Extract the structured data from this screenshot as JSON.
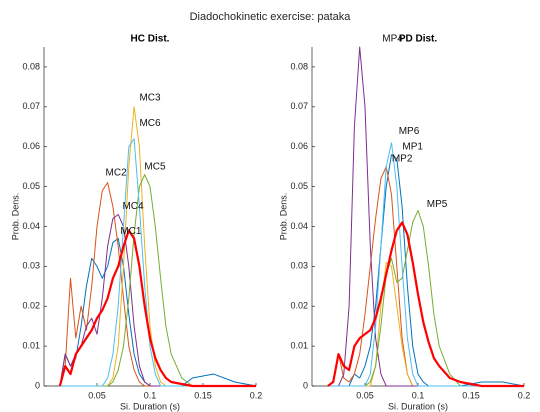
{
  "title": "Diadochokinetic exercise: pataka",
  "chart_data": [
    {
      "type": "line",
      "title": "HC Dist.",
      "xlabel": "Si. Duration (s)",
      "ylabel": "Prob. Dens.",
      "xlim": [
        0,
        0.2
      ],
      "ylim": [
        0,
        0.085
      ],
      "xticks": [
        0.05,
        0.1,
        0.15,
        0.2
      ],
      "yticks": [
        0,
        0.01,
        0.02,
        0.03,
        0.04,
        0.05,
        0.06,
        0.07,
        0.08
      ],
      "x": [
        0.015,
        0.02,
        0.025,
        0.03,
        0.035,
        0.04,
        0.045,
        0.05,
        0.055,
        0.06,
        0.065,
        0.07,
        0.075,
        0.08,
        0.085,
        0.09,
        0.095,
        0.1,
        0.105,
        0.11,
        0.115,
        0.12,
        0.13,
        0.14,
        0.16,
        0.18,
        0.2
      ],
      "series": [
        {
          "color": "#0072bd",
          "line_width": 1,
          "values": [
            0,
            0.008,
            0.005,
            0.007,
            0.015,
            0.025,
            0.032,
            0.03,
            0.027,
            0.03,
            0.036,
            0.037,
            0.03,
            0.018,
            0.008,
            0.003,
            0.001,
            0,
            0,
            0,
            0,
            0,
            0,
            0.002,
            0.003,
            0.001,
            0
          ]
        },
        {
          "color": "#d95319",
          "line_width": 1,
          "values": [
            0,
            0.005,
            0.027,
            0.012,
            0.02,
            0.014,
            0.025,
            0.04,
            0.049,
            0.051,
            0.045,
            0.035,
            0.022,
            0.01,
            0.004,
            0.001,
            0,
            0,
            0,
            0,
            0,
            0,
            0,
            0,
            0,
            0,
            0
          ]
        },
        {
          "color": "#edb120",
          "line_width": 1,
          "values": [
            0,
            0,
            0,
            0,
            0,
            0,
            0,
            0,
            0,
            0,
            0.002,
            0.01,
            0.03,
            0.055,
            0.07,
            0.06,
            0.035,
            0.015,
            0.005,
            0.001,
            0,
            0,
            0,
            0,
            0,
            0,
            0
          ]
        },
        {
          "color": "#7e2f8e",
          "line_width": 1,
          "values": [
            0,
            0.008,
            0.005,
            0.008,
            0.01,
            0.015,
            0.017,
            0.013,
            0.022,
            0.035,
            0.042,
            0.043,
            0.04,
            0.03,
            0.015,
            0.005,
            0.001,
            0,
            0,
            0,
            0,
            0,
            0,
            0,
            0,
            0,
            0
          ]
        },
        {
          "color": "#77ac30",
          "line_width": 1,
          "values": [
            0,
            0,
            0,
            0,
            0,
            0,
            0,
            0,
            0,
            0,
            0.001,
            0.004,
            0.01,
            0.022,
            0.038,
            0.05,
            0.053,
            0.05,
            0.04,
            0.027,
            0.015,
            0.008,
            0.002,
            0,
            0,
            0,
            0
          ]
        },
        {
          "color": "#4dbeee",
          "line_width": 1,
          "values": [
            0,
            0,
            0,
            0,
            0,
            0,
            0,
            0,
            0,
            0.002,
            0.008,
            0.02,
            0.04,
            0.06,
            0.062,
            0.045,
            0.025,
            0.01,
            0.003,
            0,
            0,
            0,
            0,
            0,
            0,
            0,
            0
          ]
        },
        {
          "color": "#ff0000",
          "line_width": 2.2,
          "values": [
            0,
            0.005,
            0.003,
            0.008,
            0.01,
            0.012,
            0.014,
            0.017,
            0.019,
            0.022,
            0.027,
            0.03,
            0.035,
            0.039,
            0.037,
            0.03,
            0.02,
            0.012,
            0.007,
            0.004,
            0.002,
            0.001,
            0.0005,
            0,
            0,
            0,
            0
          ]
        }
      ],
      "annotations": [
        {
          "text": "MC3",
          "x": 0.1,
          "y": 0.0723
        },
        {
          "text": "MC6",
          "x": 0.1,
          "y": 0.0658
        },
        {
          "text": "MC5",
          "x": 0.1047,
          "y": 0.055
        },
        {
          "text": "MC2",
          "x": 0.068,
          "y": 0.0535
        },
        {
          "text": "MC4",
          "x": 0.084,
          "y": 0.045
        },
        {
          "text": "MC1",
          "x": 0.082,
          "y": 0.0388
        }
      ]
    },
    {
      "type": "line",
      "title": "PD Dist.",
      "xlabel": "Si. Duration (s)",
      "ylabel": "Prob. Dens.",
      "xlim": [
        0,
        0.2
      ],
      "ylim": [
        0,
        0.085
      ],
      "xticks": [
        0.05,
        0.1,
        0.15,
        0.2
      ],
      "yticks": [
        0,
        0.01,
        0.02,
        0.03,
        0.04,
        0.05,
        0.06,
        0.07,
        0.08
      ],
      "x": [
        0.015,
        0.02,
        0.025,
        0.03,
        0.035,
        0.04,
        0.045,
        0.05,
        0.055,
        0.06,
        0.065,
        0.07,
        0.075,
        0.08,
        0.085,
        0.09,
        0.095,
        0.1,
        0.105,
        0.11,
        0.115,
        0.12,
        0.13,
        0.14,
        0.16,
        0.18,
        0.2
      ],
      "series": [
        {
          "color": "#0072bd",
          "line_width": 1,
          "values": [
            0,
            0,
            0,
            0,
            0,
            0.003,
            0.002,
            0.005,
            0.01,
            0.02,
            0.035,
            0.05,
            0.058,
            0.057,
            0.045,
            0.025,
            0.01,
            0.003,
            0.001,
            0,
            0,
            0,
            0,
            0,
            0.001,
            0.001,
            0
          ]
        },
        {
          "color": "#d95319",
          "line_width": 1,
          "values": [
            0,
            0.001,
            0.008,
            0.002,
            0.001,
            0.003,
            0.008,
            0.018,
            0.03,
            0.042,
            0.052,
            0.055,
            0.048,
            0.03,
            0.012,
            0.003,
            0,
            0,
            0,
            0,
            0,
            0,
            0,
            0,
            0,
            0,
            0
          ]
        },
        {
          "color": "#edb120",
          "line_width": 1,
          "values": [
            0,
            0,
            0,
            0,
            0,
            0,
            0,
            0,
            0,
            0.005,
            0.02,
            0.031,
            0.03,
            0.02,
            0.01,
            0.003,
            0,
            0,
            0,
            0,
            0,
            0,
            0,
            0,
            0,
            0,
            0
          ]
        },
        {
          "color": "#7e2f8e",
          "line_width": 1,
          "values": [
            0,
            0,
            0,
            0.003,
            0.02,
            0.065,
            0.085,
            0.07,
            0.035,
            0.012,
            0.003,
            0,
            0,
            0,
            0,
            0,
            0,
            0,
            0,
            0,
            0,
            0,
            0,
            0,
            0,
            0,
            0
          ]
        },
        {
          "color": "#77ac30",
          "line_width": 1,
          "values": [
            0,
            0,
            0,
            0,
            0,
            0,
            0,
            0,
            0.001,
            0.005,
            0.015,
            0.028,
            0.032,
            0.026,
            0.027,
            0.034,
            0.041,
            0.044,
            0.04,
            0.03,
            0.018,
            0.01,
            0.003,
            0,
            0,
            0,
            0
          ]
        },
        {
          "color": "#4dbeee",
          "line_width": 1,
          "values": [
            0,
            0,
            0,
            0,
            0,
            0,
            0,
            0,
            0.003,
            0.015,
            0.035,
            0.055,
            0.061,
            0.05,
            0.03,
            0.012,
            0.003,
            0,
            0,
            0,
            0,
            0,
            0,
            0,
            0,
            0,
            0
          ]
        },
        {
          "color": "#ff0000",
          "line_width": 2.2,
          "values": [
            0,
            0.001,
            0.008,
            0.005,
            0.004,
            0.01,
            0.012,
            0.013,
            0.014,
            0.017,
            0.022,
            0.028,
            0.034,
            0.039,
            0.041,
            0.038,
            0.031,
            0.023,
            0.016,
            0.011,
            0.007,
            0.005,
            0.002,
            0.001,
            0,
            0,
            0
          ]
        }
      ],
      "annotations": [
        {
          "text": "MP4",
          "x": 0.076,
          "y": 0.087
        },
        {
          "text": "MP6",
          "x": 0.0915,
          "y": 0.0638
        },
        {
          "text": "MP1",
          "x": 0.095,
          "y": 0.06
        },
        {
          "text": "MP2",
          "x": 0.085,
          "y": 0.057
        },
        {
          "text": "MP5",
          "x": 0.118,
          "y": 0.0455
        }
      ]
    }
  ]
}
